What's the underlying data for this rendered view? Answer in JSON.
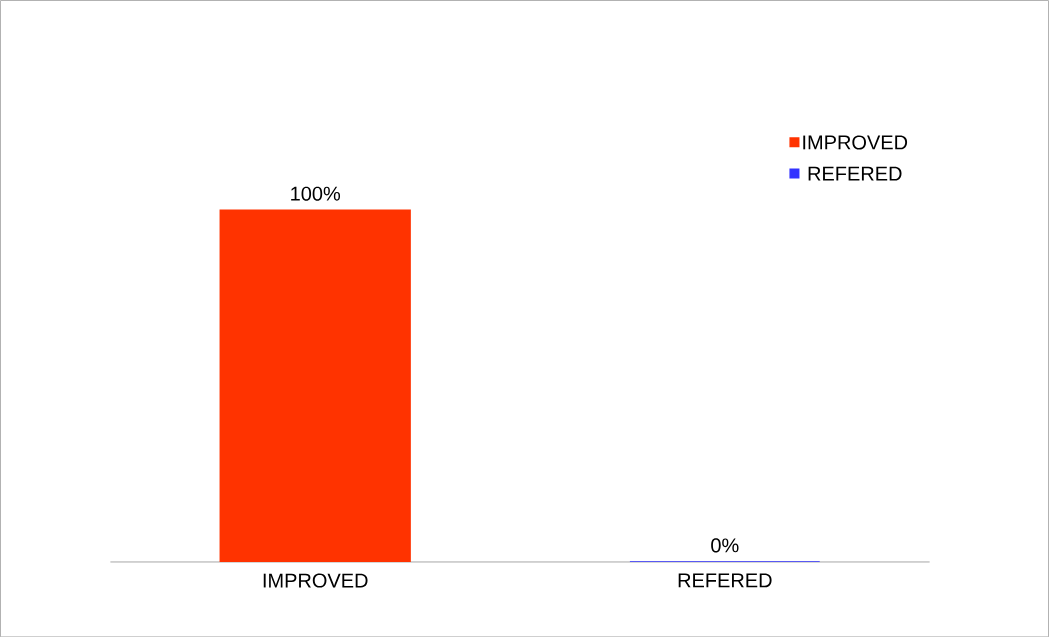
{
  "chart_data": {
    "type": "bar",
    "categories": [
      "IMPROVED",
      "REFERED"
    ],
    "series": [
      {
        "name": "IMPROVED",
        "color": "#ff3300",
        "values": [
          100,
          null
        ],
        "value_labels": [
          "100%",
          null
        ]
      },
      {
        "name": "REFERED",
        "color": "#3333ff",
        "values": [
          null,
          0
        ],
        "value_labels": [
          null,
          "0%"
        ]
      }
    ],
    "legend": "top right"
  }
}
